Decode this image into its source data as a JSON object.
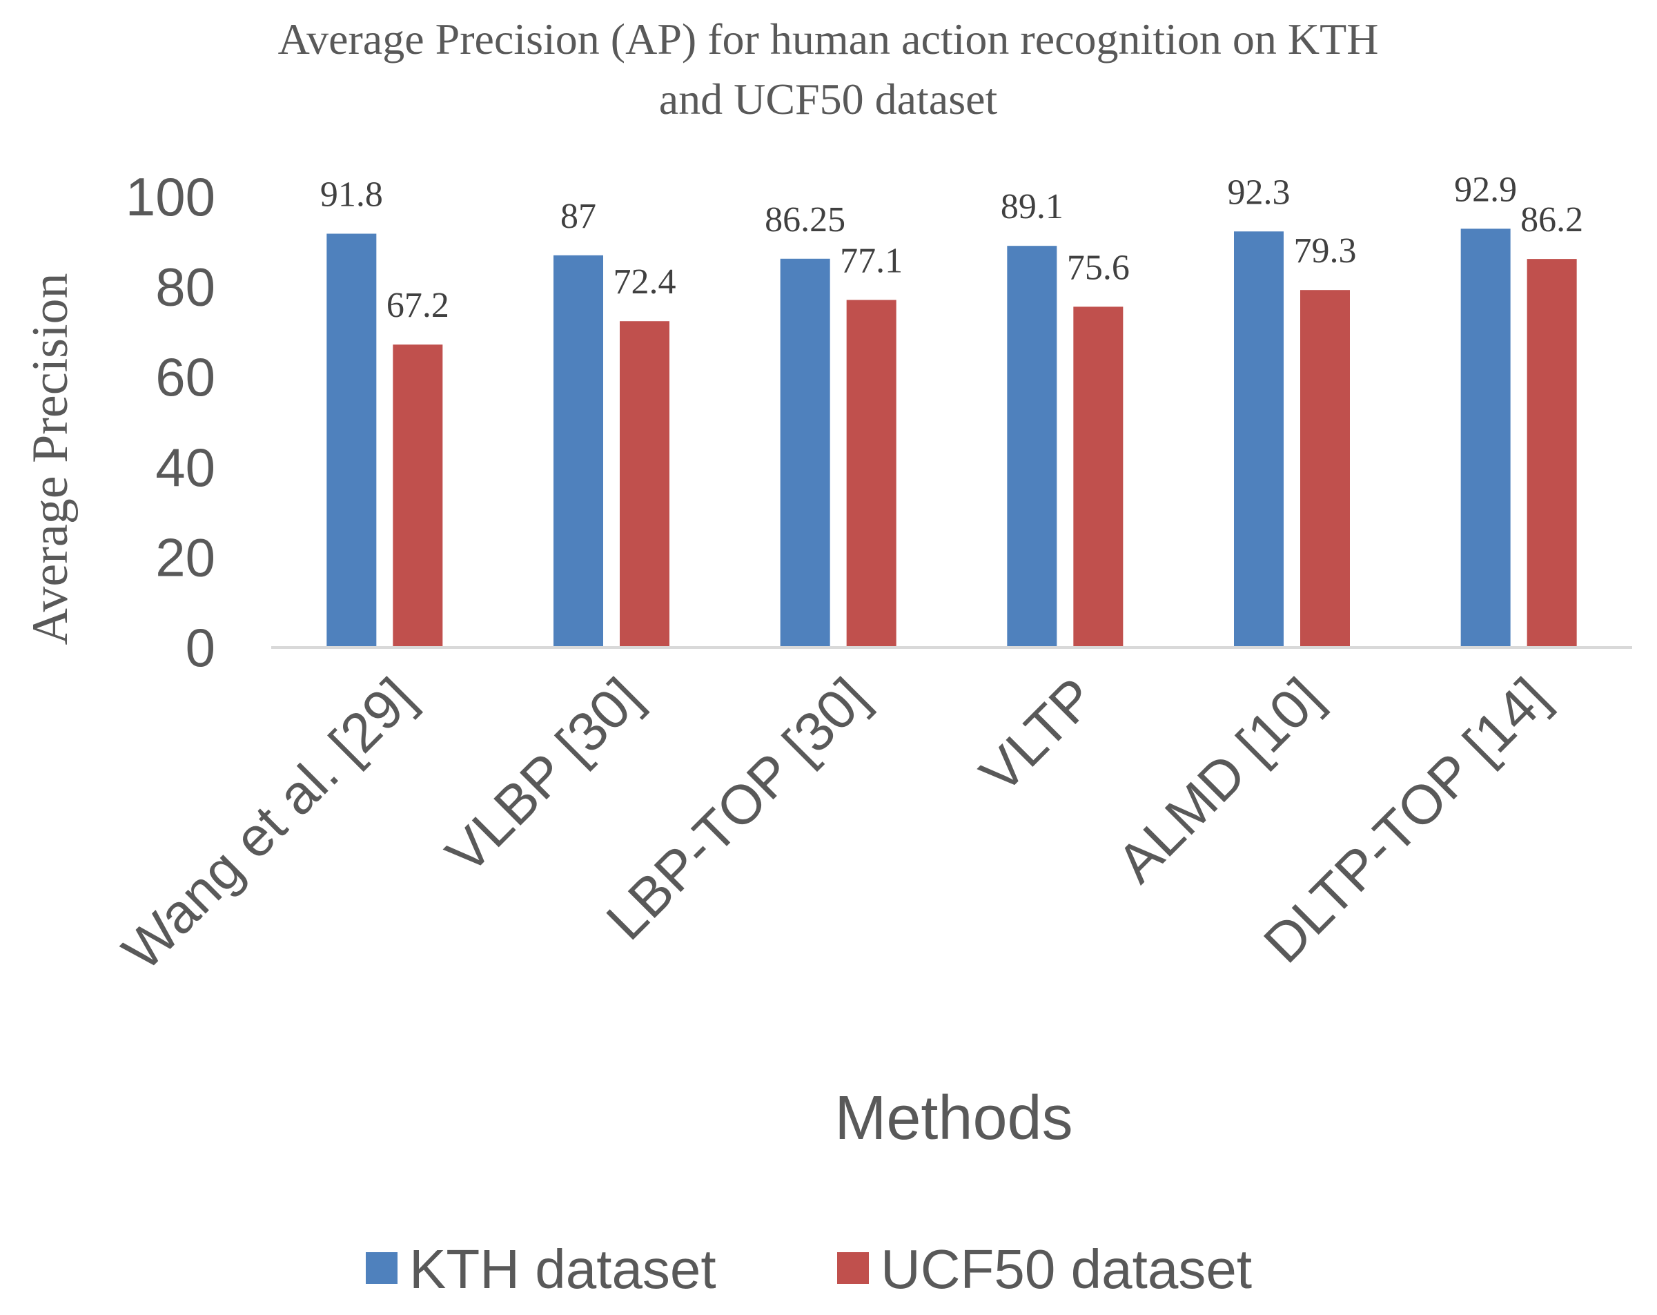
{
  "chart_data": {
    "type": "bar",
    "title": "Average Precision (AP) for human action recognition on KTH and UCF50 dataset",
    "title_lines": [
      "Average Precision (AP) for human action recognition on KTH",
      "and UCF50 dataset"
    ],
    "xlabel": "Methods",
    "ylabel": "Average Precision",
    "ylim": [
      0,
      100
    ],
    "yticks": [
      0,
      20,
      40,
      60,
      80,
      100
    ],
    "categories": [
      "Wang et al. [29]",
      "VLBP [30]",
      "LBP-TOP [30]",
      "VLTP",
      "ALMD [10]",
      "DLTP-TOP [14]"
    ],
    "series": [
      {
        "name": "KTH dataset",
        "color": "#4f81bd",
        "values": [
          91.8,
          87,
          86.25,
          89.1,
          92.3,
          92.9
        ]
      },
      {
        "name": "UCF50 dataset",
        "color": "#c0504d",
        "values": [
          67.2,
          72.4,
          77.1,
          75.6,
          79.3,
          86.2
        ]
      }
    ],
    "legend": "bottom",
    "grid": false
  }
}
